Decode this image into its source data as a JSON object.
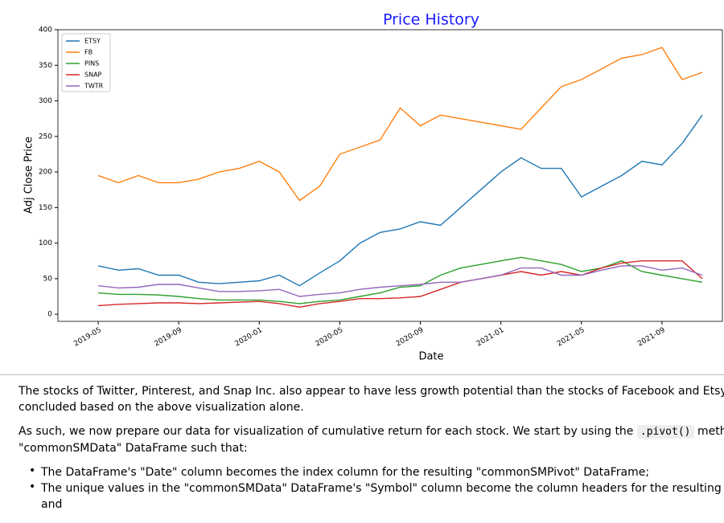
{
  "chart_data": {
    "type": "line",
    "title": "Price History",
    "xlabel": "Date",
    "ylabel": "Adj Close Price",
    "x": [
      "2019-05",
      "2019-06",
      "2019-07",
      "2019-08",
      "2019-09",
      "2019-10",
      "2019-11",
      "2019-12",
      "2020-01",
      "2020-02",
      "2020-03",
      "2020-04",
      "2020-05",
      "2020-06",
      "2020-07",
      "2020-08",
      "2020-09",
      "2020-10",
      "2020-11",
      "2020-12",
      "2021-01",
      "2021-02",
      "2021-03",
      "2021-04",
      "2021-05",
      "2021-06",
      "2021-07",
      "2021-08",
      "2021-09",
      "2021-10",
      "2021-11"
    ],
    "series": [
      {
        "name": "ETSY",
        "color": "#1f77b4",
        "values": [
          68,
          62,
          64,
          55,
          55,
          45,
          43,
          45,
          47,
          55,
          40,
          58,
          75,
          100,
          115,
          120,
          130,
          125,
          150,
          175,
          200,
          220,
          205,
          205,
          165,
          180,
          195,
          215,
          210,
          240,
          280
        ]
      },
      {
        "name": "FB",
        "color": "#ff7f0e",
        "values": [
          195,
          185,
          195,
          185,
          185,
          190,
          200,
          205,
          215,
          200,
          160,
          180,
          225,
          235,
          245,
          290,
          265,
          280,
          275,
          270,
          265,
          260,
          290,
          320,
          330,
          345,
          360,
          365,
          375,
          330,
          340
        ]
      },
      {
        "name": "PINS",
        "color": "#2ca02c",
        "values": [
          30,
          28,
          28,
          27,
          25,
          22,
          20,
          20,
          20,
          18,
          15,
          18,
          20,
          25,
          30,
          38,
          40,
          55,
          65,
          70,
          75,
          80,
          75,
          70,
          60,
          65,
          75,
          60,
          55,
          50,
          45
        ]
      },
      {
        "name": "SNAP",
        "color": "#d62728",
        "values": [
          12,
          14,
          15,
          16,
          16,
          15,
          16,
          17,
          18,
          15,
          10,
          15,
          18,
          22,
          22,
          23,
          25,
          35,
          45,
          50,
          55,
          60,
          55,
          60,
          55,
          65,
          72,
          75,
          75,
          75,
          50
        ]
      },
      {
        "name": "TWTR",
        "color": "#9467bd",
        "values": [
          40,
          37,
          38,
          42,
          42,
          37,
          32,
          32,
          33,
          35,
          25,
          28,
          30,
          35,
          38,
          40,
          42,
          45,
          45,
          50,
          55,
          65,
          65,
          55,
          55,
          62,
          68,
          68,
          62,
          65,
          55
        ]
      }
    ],
    "xlim": [
      "2019-03",
      "2021-12"
    ],
    "xticks": [
      "2019-05",
      "2019-09",
      "2020-01",
      "2020-05",
      "2020-09",
      "2021-01",
      "2021-05",
      "2021-09"
    ],
    "ylim": [
      -10,
      400
    ],
    "yticks": [
      0,
      50,
      100,
      150,
      200,
      250,
      300,
      350,
      400
    ],
    "legend": "upper left"
  },
  "text": {
    "p1": [
      "The stocks of Twitter, Pinterest, and Snap Inc. also appear to have less growth potential than the stocks of Facebook and Etsy, but this cann",
      "concluded based on the above visualization alone."
    ],
    "p2": {
      "before": "As such, we now prepare our data for visualization of cumulative return for each stock. We start by using the",
      "code": ".pivot()",
      "after": "method to reorgan",
      "line2": "\"commonSMData\" DataFrame such that:"
    },
    "bullets": [
      [
        "The DataFrame's \"Date\" column becomes the index column for the resulting \"commonSMPivot\" DataFrame;"
      ],
      [
        "The unique values in the \"commonSMData\" DataFrame's \"Symbol\" column become the column headers for the resulting \"commonSMP",
        "and"
      ]
    ]
  }
}
